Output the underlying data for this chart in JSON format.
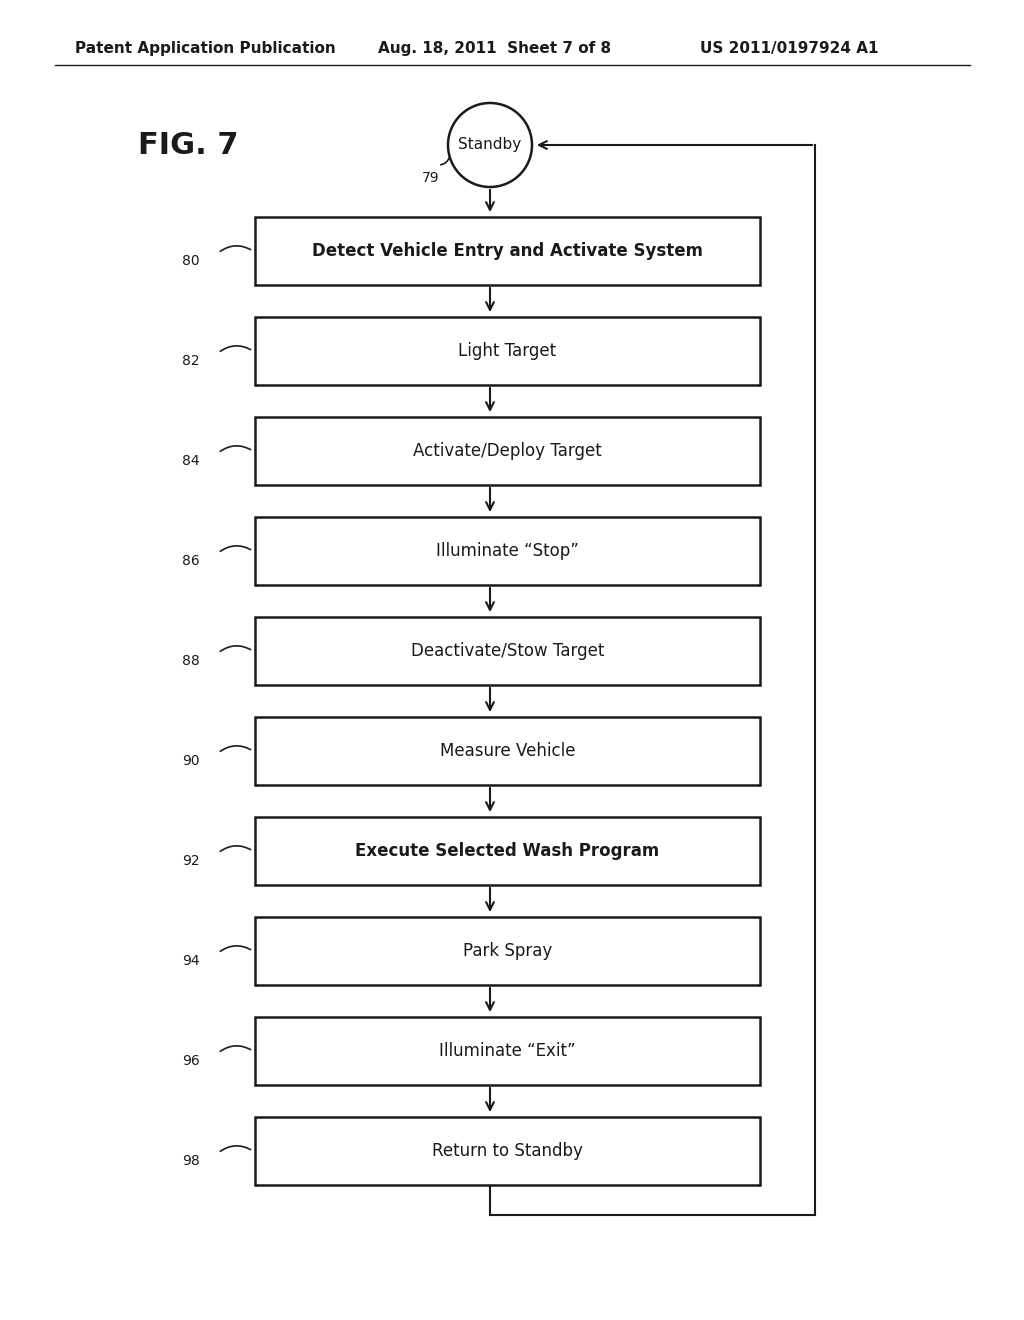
{
  "header_left": "Patent Application Publication",
  "header_center": "Aug. 18, 2011  Sheet 7 of 8",
  "header_right": "US 2011/0197924 A1",
  "fig_label": "FIG. 7",
  "standby_label": "Standby",
  "standby_number": "79",
  "boxes": [
    {
      "label": "Detect Vehicle Entry and Activate System",
      "number": "80"
    },
    {
      "label": "Light Target",
      "number": "82"
    },
    {
      "label": "Activate/Deploy Target",
      "number": "84"
    },
    {
      "label": "Illuminate “Stop”",
      "number": "86"
    },
    {
      "label": "Deactivate/Stow Target",
      "number": "88"
    },
    {
      "label": "Measure Vehicle",
      "number": "90"
    },
    {
      "label": "Execute Selected Wash Program",
      "number": "92"
    },
    {
      "label": "Park Spray",
      "number": "94"
    },
    {
      "label": "Illuminate “Exit”",
      "number": "96"
    },
    {
      "label": "Return to Standby",
      "number": "98"
    }
  ],
  "bg_color": "#ffffff",
  "box_color": "#ffffff",
  "box_edge_color": "#1a1a1a",
  "text_color": "#1a1a1a",
  "line_color": "#1a1a1a"
}
